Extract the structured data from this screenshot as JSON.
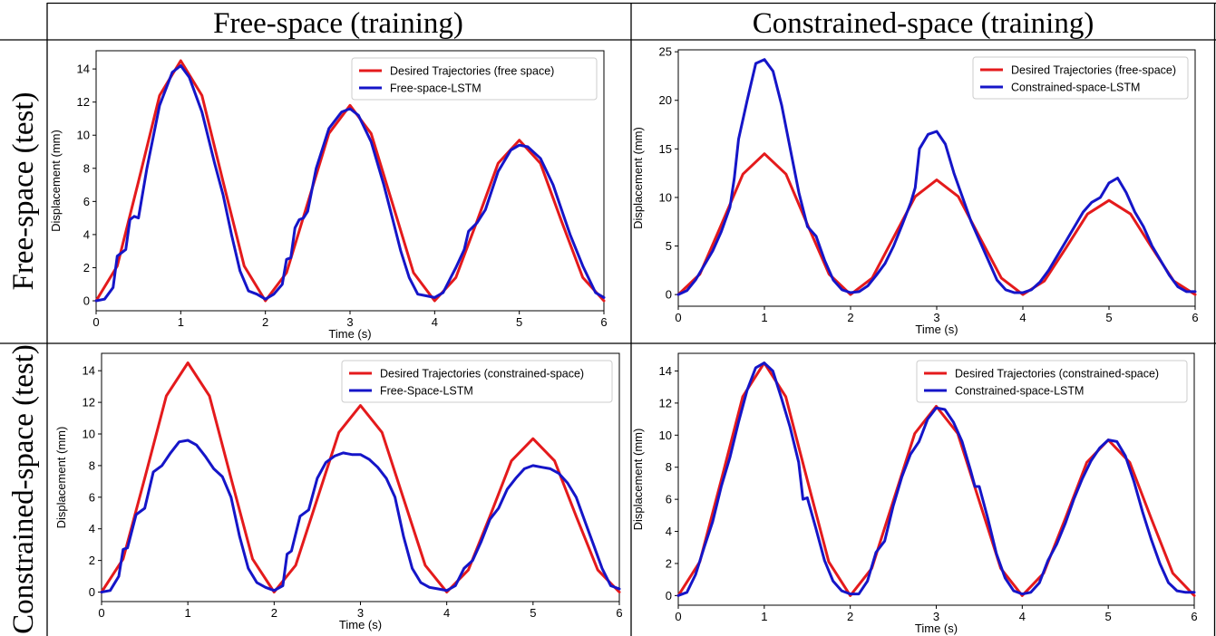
{
  "headers": {
    "col1": "Free-space (training)",
    "col2": "Constrained-space (training)",
    "row1": "Free-space (test)",
    "row2": "Constrained-space (test)"
  },
  "colors": {
    "desired": "#e41a1c",
    "lstm": "#1515c8"
  },
  "chart_data": [
    {
      "type": "line",
      "xlabel": "Time (s)",
      "ylabel": "Displacement (mm)",
      "xlim": [
        0,
        6
      ],
      "ylim": [
        -0.6,
        15.1
      ],
      "xticks": [
        0,
        1,
        2,
        3,
        4,
        5,
        6
      ],
      "yticks": [
        0,
        2,
        4,
        6,
        8,
        10,
        12,
        14
      ],
      "legend_position": "top-right",
      "series": [
        {
          "name": "Desired Trajectories (free space)",
          "color": "#e41a1c",
          "x": [
            0,
            0.25,
            0.5,
            0.75,
            1,
            1.25,
            1.5,
            1.75,
            2,
            2.25,
            2.5,
            2.75,
            3,
            3.25,
            3.5,
            3.75,
            4,
            4.25,
            4.5,
            4.75,
            5,
            5.25,
            5.5,
            5.75,
            6
          ],
          "y": [
            0,
            2.1,
            7.2,
            12.4,
            14.5,
            12.4,
            7.2,
            2.1,
            0,
            1.7,
            5.9,
            10.1,
            11.8,
            10.1,
            5.9,
            1.7,
            0,
            1.4,
            4.8,
            8.3,
            9.7,
            8.3,
            4.8,
            1.4,
            0
          ]
        },
        {
          "name": "Free-space-LSTM",
          "color": "#1515c8",
          "x": [
            0,
            0.1,
            0.2,
            0.25,
            0.35,
            0.4,
            0.45,
            0.5,
            0.6,
            0.75,
            0.9,
            1,
            1.1,
            1.25,
            1.4,
            1.5,
            1.6,
            1.7,
            1.8,
            1.9,
            2,
            2.1,
            2.2,
            2.25,
            2.3,
            2.35,
            2.4,
            2.45,
            2.5,
            2.6,
            2.75,
            2.9,
            3,
            3.1,
            3.25,
            3.4,
            3.5,
            3.6,
            3.7,
            3.8,
            3.9,
            4,
            4.1,
            4.2,
            4.25,
            4.35,
            4.4,
            4.5,
            4.6,
            4.75,
            4.9,
            5,
            5.1,
            5.25,
            5.4,
            5.5,
            5.6,
            5.75,
            5.9,
            6
          ],
          "y": [
            0,
            0.1,
            0.8,
            2.7,
            3.1,
            4.9,
            5.1,
            5.0,
            8.0,
            11.8,
            13.8,
            14.2,
            13.5,
            11.4,
            8.3,
            6.4,
            4.0,
            1.8,
            0.6,
            0.4,
            0.1,
            0.4,
            1.0,
            2.5,
            2.6,
            4.4,
            4.9,
            5.0,
            5.4,
            8.0,
            10.4,
            11.4,
            11.6,
            11.2,
            9.6,
            7.0,
            5.0,
            3.0,
            1.4,
            0.4,
            0.3,
            0.2,
            0.5,
            1.5,
            2.0,
            3.1,
            4.2,
            4.7,
            5.5,
            7.8,
            9.1,
            9.4,
            9.3,
            8.6,
            7.0,
            5.5,
            4.0,
            2.1,
            0.5,
            0.2
          ]
        }
      ]
    },
    {
      "type": "line",
      "xlabel": "Time (s)",
      "ylabel": "Displacement (mm)",
      "xlim": [
        0,
        6
      ],
      "ylim": [
        -1.2,
        25.2
      ],
      "xticks": [
        0,
        1,
        2,
        3,
        4,
        5,
        6
      ],
      "yticks": [
        0,
        5,
        10,
        15,
        20,
        25
      ],
      "legend_position": "top-right",
      "series": [
        {
          "name": "Desired Trajectories (free-space)",
          "color": "#e41a1c",
          "x": [
            0,
            0.25,
            0.5,
            0.75,
            1,
            1.25,
            1.5,
            1.75,
            2,
            2.25,
            2.5,
            2.75,
            3,
            3.25,
            3.5,
            3.75,
            4,
            4.25,
            4.5,
            4.75,
            5,
            5.25,
            5.5,
            5.75,
            6
          ],
          "y": [
            0,
            2.1,
            7.2,
            12.4,
            14.5,
            12.4,
            7.2,
            2.1,
            0,
            1.7,
            5.9,
            10.1,
            11.8,
            10.1,
            5.9,
            1.7,
            0,
            1.4,
            4.8,
            8.3,
            9.7,
            8.3,
            4.8,
            1.4,
            0
          ]
        },
        {
          "name": "Constrained-space-LSTM",
          "color": "#1515c8",
          "x": [
            0,
            0.1,
            0.2,
            0.3,
            0.4,
            0.5,
            0.6,
            0.65,
            0.7,
            0.8,
            0.9,
            1,
            1.1,
            1.2,
            1.3,
            1.4,
            1.5,
            1.55,
            1.6,
            1.7,
            1.8,
            1.9,
            2,
            2.1,
            2.2,
            2.3,
            2.4,
            2.5,
            2.6,
            2.7,
            2.75,
            2.8,
            2.9,
            3,
            3.1,
            3.2,
            3.3,
            3.4,
            3.5,
            3.6,
            3.7,
            3.8,
            3.9,
            4,
            4.1,
            4.2,
            4.3,
            4.4,
            4.5,
            4.6,
            4.7,
            4.8,
            4.9,
            5,
            5.1,
            5.2,
            5.3,
            5.4,
            5.5,
            5.6,
            5.7,
            5.8,
            5.9,
            6
          ],
          "y": [
            0,
            0.4,
            1.5,
            3.0,
            4.5,
            6.5,
            9.0,
            12.0,
            16.0,
            20.0,
            23.8,
            24.2,
            23.0,
            19.5,
            15.0,
            10.5,
            7.0,
            6.5,
            6.0,
            3.5,
            1.5,
            0.5,
            0.2,
            0.3,
            0.9,
            2.0,
            3.2,
            5.0,
            7.2,
            9.5,
            11.0,
            15.0,
            16.5,
            16.8,
            15.5,
            12.5,
            10.0,
            7.5,
            5.5,
            3.5,
            1.5,
            0.5,
            0.2,
            0.2,
            0.5,
            1.3,
            2.5,
            4.0,
            5.5,
            7.0,
            8.5,
            9.5,
            10.0,
            11.5,
            12.0,
            10.5,
            8.5,
            7.0,
            5.0,
            3.5,
            2.0,
            0.8,
            0.3,
            0.3
          ]
        }
      ]
    },
    {
      "type": "line",
      "xlabel": "Time (s)",
      "ylabel": "Displacement (mm)",
      "xlim": [
        0,
        6
      ],
      "ylim": [
        -0.6,
        15.1
      ],
      "xticks": [
        0,
        1,
        2,
        3,
        4,
        5,
        6
      ],
      "yticks": [
        0,
        2,
        4,
        6,
        8,
        10,
        12,
        14
      ],
      "legend_position": "top-right",
      "series": [
        {
          "name": "Desired Trajectories (constrained-space)",
          "color": "#e41a1c",
          "x": [
            0,
            0.25,
            0.5,
            0.75,
            1,
            1.25,
            1.5,
            1.75,
            2,
            2.25,
            2.5,
            2.75,
            3,
            3.25,
            3.5,
            3.75,
            4,
            4.25,
            4.5,
            4.75,
            5,
            5.25,
            5.5,
            5.75,
            6
          ],
          "y": [
            0,
            2.1,
            7.2,
            12.4,
            14.5,
            12.4,
            7.2,
            2.1,
            0,
            1.7,
            5.9,
            10.1,
            11.8,
            10.1,
            5.9,
            1.7,
            0,
            1.4,
            4.8,
            8.3,
            9.7,
            8.3,
            4.8,
            1.4,
            0
          ]
        },
        {
          "name": "Free-Space-LSTM",
          "color": "#1515c8",
          "x": [
            0,
            0.1,
            0.2,
            0.25,
            0.3,
            0.4,
            0.5,
            0.6,
            0.7,
            0.8,
            0.9,
            1,
            1.1,
            1.2,
            1.3,
            1.4,
            1.5,
            1.6,
            1.7,
            1.8,
            1.9,
            2,
            2.1,
            2.15,
            2.2,
            2.3,
            2.4,
            2.5,
            2.6,
            2.7,
            2.8,
            2.9,
            3,
            3.1,
            3.2,
            3.3,
            3.4,
            3.5,
            3.6,
            3.7,
            3.8,
            3.9,
            4,
            4.1,
            4.2,
            4.3,
            4.4,
            4.5,
            4.6,
            4.7,
            4.8,
            4.9,
            5,
            5.1,
            5.2,
            5.3,
            5.4,
            5.5,
            5.6,
            5.7,
            5.8,
            5.9,
            6
          ],
          "y": [
            0,
            0.1,
            1.0,
            2.7,
            2.8,
            4.9,
            5.3,
            7.6,
            8.0,
            8.8,
            9.5,
            9.6,
            9.3,
            8.6,
            7.8,
            7.3,
            6.0,
            3.5,
            1.5,
            0.6,
            0.3,
            0.1,
            0.4,
            2.4,
            2.6,
            4.8,
            5.2,
            7.2,
            8.2,
            8.6,
            8.8,
            8.7,
            8.7,
            8.4,
            7.9,
            7.2,
            6.0,
            3.5,
            1.5,
            0.6,
            0.3,
            0.2,
            0.1,
            0.4,
            1.5,
            2.0,
            3.2,
            4.6,
            5.3,
            6.5,
            7.2,
            7.8,
            8.0,
            7.9,
            7.8,
            7.5,
            6.9,
            6.0,
            4.5,
            3.0,
            1.5,
            0.4,
            0.2
          ]
        }
      ]
    },
    {
      "type": "line",
      "xlabel": "Time (s)",
      "ylabel": "Displacement (mm)",
      "xlim": [
        0,
        6
      ],
      "ylim": [
        -0.6,
        15.1
      ],
      "xticks": [
        0,
        1,
        2,
        3,
        4,
        5,
        6
      ],
      "yticks": [
        0,
        2,
        4,
        6,
        8,
        10,
        12,
        14
      ],
      "legend_position": "top-right",
      "series": [
        {
          "name": "Desired Trajectories (constrained-space)",
          "color": "#e41a1c",
          "x": [
            0,
            0.25,
            0.5,
            0.75,
            1,
            1.25,
            1.5,
            1.75,
            2,
            2.25,
            2.5,
            2.75,
            3,
            3.25,
            3.5,
            3.75,
            4,
            4.25,
            4.5,
            4.75,
            5,
            5.25,
            5.5,
            5.75,
            6
          ],
          "y": [
            0,
            2.1,
            7.2,
            12.4,
            14.5,
            12.4,
            7.2,
            2.1,
            0,
            1.7,
            5.9,
            10.1,
            11.8,
            10.1,
            5.9,
            1.7,
            0,
            1.4,
            4.8,
            8.3,
            9.7,
            8.3,
            4.8,
            1.4,
            0
          ]
        },
        {
          "name": "Constrained-space-LSTM",
          "color": "#1515c8",
          "x": [
            0,
            0.1,
            0.2,
            0.3,
            0.4,
            0.5,
            0.6,
            0.7,
            0.8,
            0.9,
            1,
            1.1,
            1.2,
            1.3,
            1.4,
            1.45,
            1.5,
            1.6,
            1.7,
            1.8,
            1.9,
            2,
            2.1,
            2.2,
            2.3,
            2.4,
            2.5,
            2.6,
            2.7,
            2.8,
            2.9,
            3,
            3.1,
            3.2,
            3.3,
            3.4,
            3.45,
            3.5,
            3.6,
            3.7,
            3.8,
            3.9,
            4,
            4.1,
            4.2,
            4.3,
            4.4,
            4.5,
            4.6,
            4.7,
            4.8,
            4.9,
            5,
            5.1,
            5.2,
            5.3,
            5.4,
            5.5,
            5.6,
            5.7,
            5.8,
            5.9,
            6
          ],
          "y": [
            0,
            0.2,
            1.3,
            3.0,
            4.6,
            6.8,
            8.6,
            10.8,
            12.8,
            14.2,
            14.5,
            14.0,
            12.3,
            10.5,
            8.3,
            6.0,
            6.1,
            4.2,
            2.2,
            0.9,
            0.3,
            0.1,
            0.1,
            0.9,
            2.7,
            3.4,
            5.6,
            7.4,
            8.8,
            9.6,
            11.0,
            11.7,
            11.6,
            10.8,
            9.6,
            7.8,
            6.8,
            6.8,
            4.8,
            2.6,
            1.1,
            0.3,
            0.1,
            0.2,
            0.8,
            2.2,
            3.2,
            4.5,
            6.0,
            7.3,
            8.4,
            9.2,
            9.7,
            9.6,
            8.7,
            7.1,
            5.2,
            3.5,
            2.0,
            0.8,
            0.3,
            0.2,
            0.2
          ]
        }
      ]
    }
  ]
}
